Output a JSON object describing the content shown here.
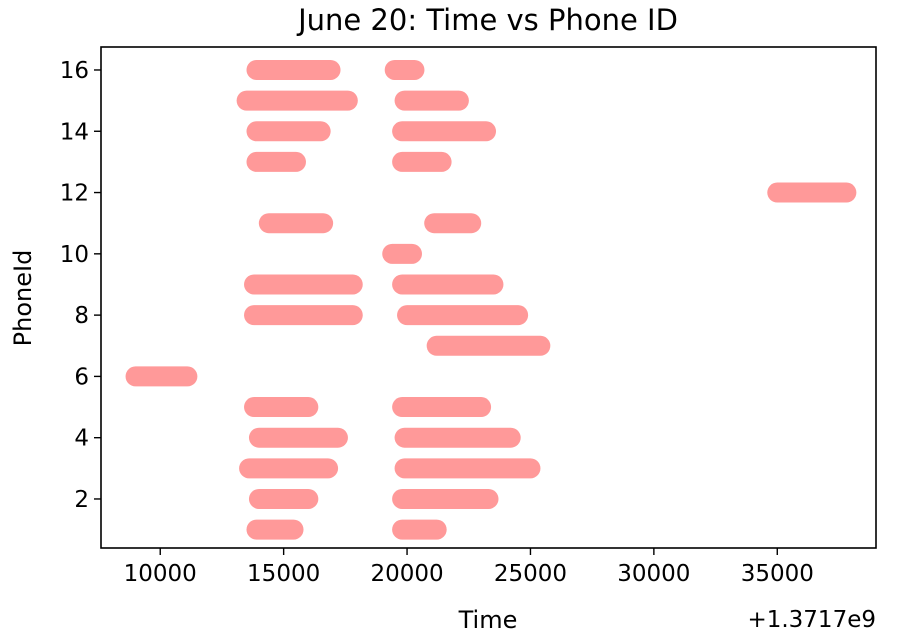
{
  "chart_data": {
    "type": "scatter",
    "title": "June 20: Time vs Phone ID",
    "xlabel": "Time",
    "ylabel": "PhoneId",
    "x_offset_label": "+1.3717e9",
    "xlim": [
      7600,
      39000
    ],
    "ylim": [
      0.4,
      16.75
    ],
    "xticks": [
      10000,
      15000,
      20000,
      25000,
      30000,
      35000
    ],
    "xtick_labels": [
      "10000",
      "15000",
      "20000",
      "25000",
      "30000",
      "35000"
    ],
    "yticks": [
      2,
      4,
      6,
      8,
      10,
      12,
      14,
      16
    ],
    "ytick_labels": [
      "2",
      "4",
      "6",
      "8",
      "10",
      "12",
      "14",
      "16"
    ],
    "marker_color": "#ff9999",
    "series": [
      {
        "values": [
          {
            "phone": 1,
            "start": 13900,
            "end": 15400
          },
          {
            "phone": 1,
            "start": 19800,
            "end": 21200
          },
          {
            "phone": 2,
            "start": 14000,
            "end": 16000
          },
          {
            "phone": 2,
            "start": 19800,
            "end": 23300
          },
          {
            "phone": 3,
            "start": 13600,
            "end": 16800
          },
          {
            "phone": 3,
            "start": 19900,
            "end": 25000
          },
          {
            "phone": 4,
            "start": 14000,
            "end": 17200
          },
          {
            "phone": 4,
            "start": 19900,
            "end": 24200
          },
          {
            "phone": 5,
            "start": 13800,
            "end": 16000
          },
          {
            "phone": 5,
            "start": 19800,
            "end": 23000
          },
          {
            "phone": 6,
            "start": 9000,
            "end": 11100
          },
          {
            "phone": 7,
            "start": 21200,
            "end": 25400
          },
          {
            "phone": 8,
            "start": 13800,
            "end": 17800
          },
          {
            "phone": 8,
            "start": 20000,
            "end": 24500
          },
          {
            "phone": 9,
            "start": 13800,
            "end": 17800
          },
          {
            "phone": 9,
            "start": 19800,
            "end": 23500
          },
          {
            "phone": 10,
            "start": 19400,
            "end": 20200
          },
          {
            "phone": 11,
            "start": 14400,
            "end": 16600
          },
          {
            "phone": 11,
            "start": 21100,
            "end": 22600
          },
          {
            "phone": 13,
            "start": 13900,
            "end": 15500
          },
          {
            "phone": 13,
            "start": 19800,
            "end": 21400
          },
          {
            "phone": 14,
            "start": 13900,
            "end": 16500
          },
          {
            "phone": 14,
            "start": 19800,
            "end": 23200
          },
          {
            "phone": 15,
            "start": 13500,
            "end": 17600
          },
          {
            "phone": 15,
            "start": 19900,
            "end": 22100
          },
          {
            "phone": 16,
            "start": 13900,
            "end": 16900
          },
          {
            "phone": 16,
            "start": 19500,
            "end": 20300
          },
          {
            "phone": 12,
            "start": 35000,
            "end": 37800
          }
        ]
      }
    ]
  }
}
